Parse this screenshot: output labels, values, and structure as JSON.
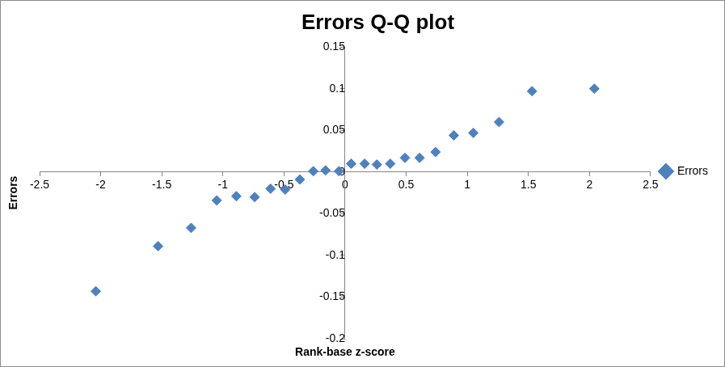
{
  "chart_data": {
    "type": "scatter",
    "title": "Errors Q-Q plot",
    "x_label": "Rank-base z-score",
    "y_label": "Errors",
    "x": [
      -2.04,
      -1.53,
      -1.26,
      -1.05,
      -0.89,
      -0.74,
      -0.61,
      -0.49,
      -0.37,
      -0.26,
      -0.16,
      -0.05,
      0.05,
      0.16,
      0.26,
      0.37,
      0.49,
      0.61,
      0.74,
      0.89,
      1.05,
      1.26,
      1.53,
      2.04
    ],
    "series": [
      {
        "name": "Errors",
        "color": "#4f81bd",
        "marker": "diamond",
        "values": [
          -0.143,
          -0.089,
          -0.067,
          -0.034,
          -0.029,
          -0.03,
          -0.02,
          -0.021,
          -0.009,
          0.001,
          0.002,
          0.001,
          0.01,
          0.01,
          0.009,
          0.01,
          0.017,
          0.017,
          0.024,
          0.044,
          0.047,
          0.06,
          0.097,
          0.1
        ]
      }
    ],
    "xlim": [
      -2.5,
      2.5
    ],
    "xticks": [
      -2.5,
      -2,
      -1.5,
      -1,
      -0.5,
      0,
      0.5,
      1,
      1.5,
      2,
      2.5
    ],
    "ylim": [
      -0.2,
      0.15
    ],
    "yticks": [
      -0.2,
      -0.15,
      -0.1,
      -0.05,
      0,
      0.05,
      0.1,
      0.15
    ],
    "grid": false,
    "legend": "right"
  }
}
